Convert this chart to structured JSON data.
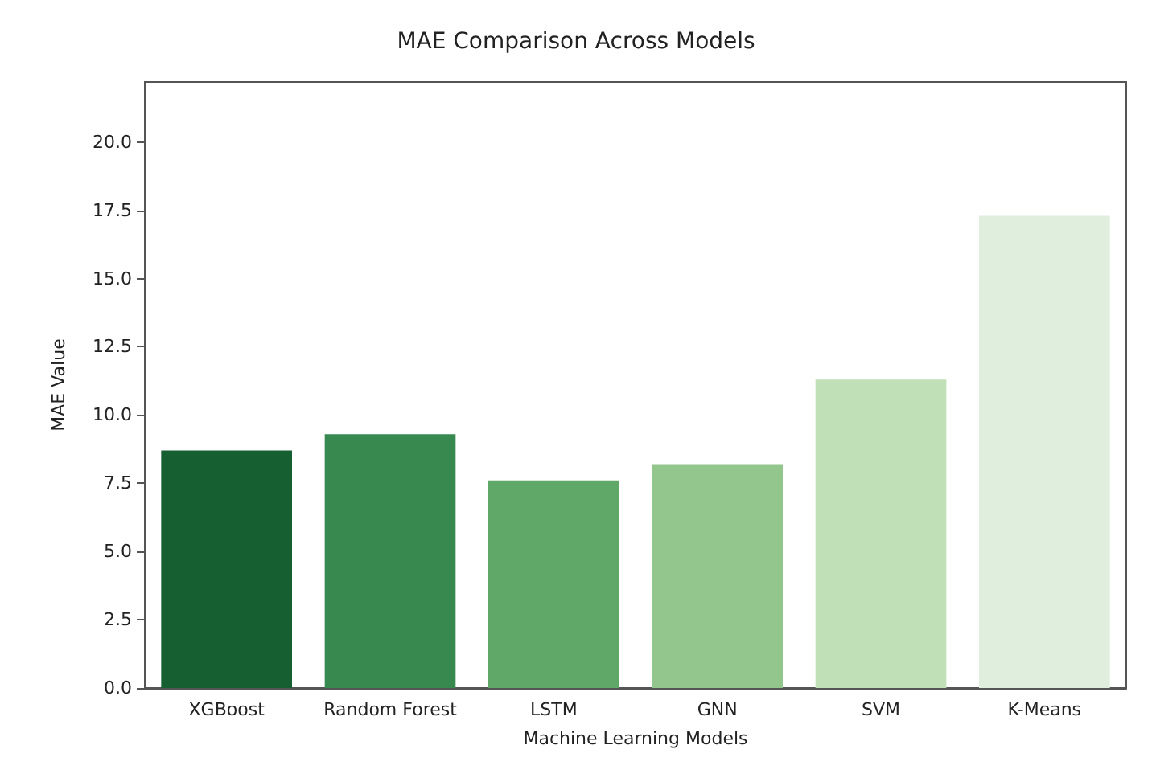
{
  "chart_data": {
    "type": "bar",
    "title": "MAE Comparison Across Models",
    "xlabel": "Machine Learning Models",
    "ylabel": "MAE Value",
    "categories": [
      "XGBoost",
      "Random Forest",
      "LSTM",
      "GNN",
      "SVM",
      "K-Means"
    ],
    "values": [
      8.7,
      9.3,
      7.6,
      8.2,
      11.3,
      17.3
    ],
    "colors": [
      "#165f30",
      "#38894f",
      "#60a868",
      "#93c68c",
      "#c0e0b8",
      "#e0eedd"
    ],
    "ylim": [
      0,
      22.2
    ],
    "yticks": [
      {
        "value": 0,
        "label": "0.0"
      },
      {
        "value": 2.5,
        "label": "2.5"
      },
      {
        "value": 5,
        "label": "5.0"
      },
      {
        "value": 7.5,
        "label": "7.5"
      },
      {
        "value": 10,
        "label": "10.0"
      },
      {
        "value": 12.5,
        "label": "12.5"
      },
      {
        "value": 15,
        "label": "15.0"
      },
      {
        "value": 17.5,
        "label": "17.5"
      },
      {
        "value": 20,
        "label": "20.0"
      }
    ],
    "grid": false
  }
}
